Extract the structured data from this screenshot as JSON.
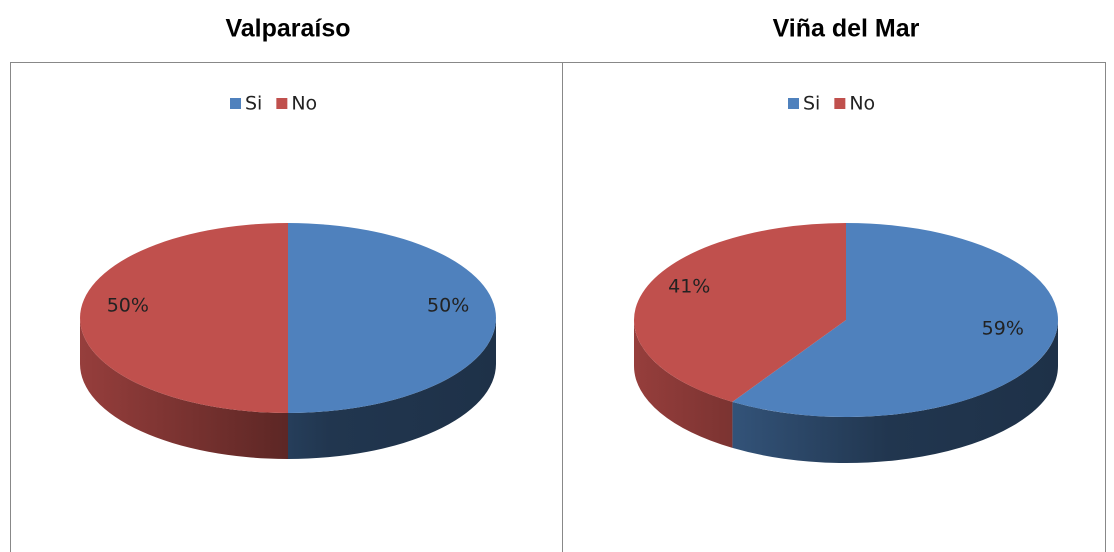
{
  "chart_data": [
    {
      "type": "pie",
      "title": "Valparaíso",
      "categories": [
        "Si",
        "No"
      ],
      "values": [
        50,
        50
      ],
      "value_labels": [
        "50%",
        "50%"
      ],
      "colors": [
        "#4f81bd",
        "#c0504d"
      ],
      "legend": "top"
    },
    {
      "type": "pie",
      "title": "Viña del Mar",
      "categories": [
        "Si",
        "No"
      ],
      "values": [
        59,
        41
      ],
      "value_labels": [
        "59%",
        "41%"
      ],
      "colors": [
        "#4f81bd",
        "#c0504d"
      ],
      "legend": "top"
    }
  ]
}
